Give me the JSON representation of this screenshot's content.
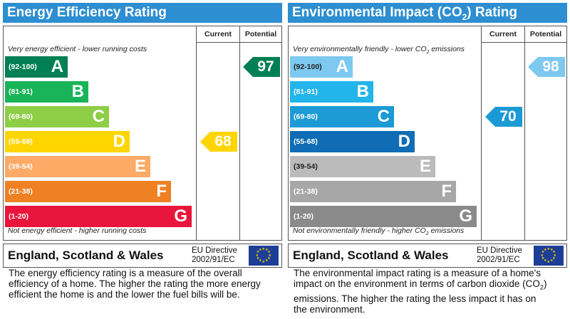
{
  "energy": {
    "title": "Energy Efficiency Rating",
    "col_current": "Current",
    "col_potential": "Potential",
    "top_text": "Very energy efficient - lower running costs",
    "bottom_text": "Not energy efficient - higher running costs",
    "bands": [
      {
        "range": "(92-100)",
        "letter": "A",
        "color": "#008054"
      },
      {
        "range": "(81-91)",
        "letter": "B",
        "color": "#19b459"
      },
      {
        "range": "(69-80)",
        "letter": "C",
        "color": "#8dce46"
      },
      {
        "range": "(55-68)",
        "letter": "D",
        "color": "#ffd500"
      },
      {
        "range": "(39-54)",
        "letter": "E",
        "color": "#fcaa65"
      },
      {
        "range": "(21-38)",
        "letter": "F",
        "color": "#ef8023"
      },
      {
        "range": "(1-20)",
        "letter": "G",
        "color": "#e9153b"
      }
    ],
    "current": {
      "value": "68",
      "band": "D",
      "color": "#ffd500"
    },
    "potential": {
      "value": "97",
      "band": "A",
      "color": "#008054"
    },
    "region": "England, Scotland & Wales",
    "directive_line1": "EU Directive",
    "directive_line2": "2002/91/EC",
    "description": "The energy efficiency rating is a measure of the overall efficiency of a home. The higher the rating the more energy efficient the home is and the lower the fuel bills will be."
  },
  "environment": {
    "title_pre": "Environmental Impact (CO",
    "title_sub": "2",
    "title_post": ") Rating",
    "col_current": "Current",
    "col_potential": "Potential",
    "top_pre": "Very environmentally friendly - lower CO",
    "top_sub": "2",
    "top_post": " emissions",
    "bottom_pre": "Not environmentally friendly - higher CO",
    "bottom_sub": "2",
    "bottom_post": " emissions",
    "bands": [
      {
        "range": "(92-100)",
        "letter": "A",
        "color": "#7dc9ef"
      },
      {
        "range": "(81-91)",
        "letter": "B",
        "color": "#22b5eb"
      },
      {
        "range": "(69-80)",
        "letter": "C",
        "color": "#1c9ad6"
      },
      {
        "range": "(55-68)",
        "letter": "D",
        "color": "#0f6cb5"
      },
      {
        "range": "(39-54)",
        "letter": "E",
        "color": "#bbbbbb"
      },
      {
        "range": "(21-38)",
        "letter": "F",
        "color": "#a7a7a7"
      },
      {
        "range": "(1-20)",
        "letter": "G",
        "color": "#8a8a8a"
      }
    ],
    "current": {
      "value": "70",
      "band": "C",
      "color": "#1c9ad6"
    },
    "potential": {
      "value": "98",
      "band": "A",
      "color": "#7dc9ef"
    },
    "region": "England, Scotland & Wales",
    "directive_line1": "EU Directive",
    "directive_line2": "2002/91/EC",
    "desc_pre": "The environmental impact rating is a measure of a home's impact on the environment in terms of carbon dioxide (CO",
    "desc_sub": "2",
    "desc_post": ") emissions. The higher the rating the less impact it has on the environment."
  }
}
